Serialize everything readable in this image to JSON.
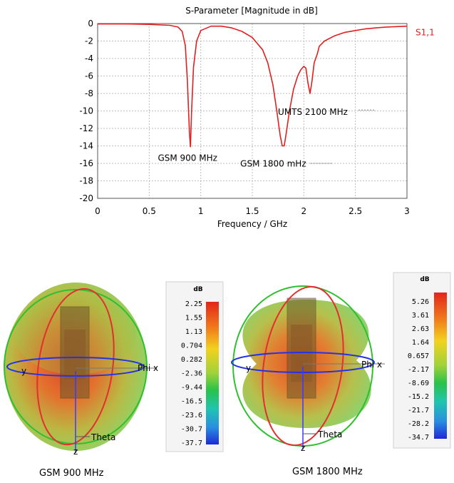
{
  "chart_data": {
    "type": "line",
    "title": "S-Parameter [Magnitude in dB]",
    "xlabel": "Frequency / GHz",
    "ylabel": "",
    "xlim": [
      0,
      3
    ],
    "ylim": [
      -20,
      0
    ],
    "x_ticks": [
      "0",
      "0.5",
      "1",
      "1.5",
      "2",
      "2.5",
      "3"
    ],
    "y_ticks": [
      "0",
      "-2",
      "-4",
      "-6",
      "-8",
      "-10",
      "-12",
      "-14",
      "-16",
      "-18",
      "-20"
    ],
    "grid": true,
    "series": [
      {
        "name": "S1,1",
        "color": "#e02020",
        "x": [
          0,
          0.3,
          0.5,
          0.7,
          0.78,
          0.82,
          0.85,
          0.87,
          0.89,
          0.9,
          0.91,
          0.93,
          0.96,
          1.0,
          1.1,
          1.2,
          1.3,
          1.4,
          1.5,
          1.6,
          1.65,
          1.7,
          1.74,
          1.77,
          1.79,
          1.81,
          1.83,
          1.86,
          1.9,
          1.94,
          1.97,
          2.0,
          2.02,
          2.04,
          2.06,
          2.08,
          2.1,
          2.13,
          2.15,
          2.2,
          2.3,
          2.4,
          2.5,
          2.6,
          2.7,
          2.8,
          2.9,
          3.0
        ],
        "y": [
          -0.05,
          -0.05,
          -0.1,
          -0.2,
          -0.4,
          -0.9,
          -2.5,
          -6.5,
          -12.5,
          -14.1,
          -10.5,
          -5.0,
          -2.0,
          -0.8,
          -0.3,
          -0.3,
          -0.5,
          -0.9,
          -1.6,
          -3.0,
          -4.5,
          -7.0,
          -10.2,
          -12.8,
          -14.0,
          -14.0,
          -12.5,
          -10.0,
          -7.5,
          -6.0,
          -5.3,
          -4.9,
          -5.1,
          -6.8,
          -8.0,
          -6.5,
          -4.5,
          -3.5,
          -2.6,
          -2.0,
          -1.4,
          -1.0,
          -0.8,
          -0.6,
          -0.5,
          -0.4,
          -0.35,
          -0.3
        ]
      }
    ],
    "annotations": [
      {
        "text": "GSM 900 MHz",
        "x": 0.9,
        "y": -14.1
      },
      {
        "text": "GSM 1800 mHz",
        "x": 1.8,
        "y": -14.0
      },
      {
        "text": "UMTS 2100 MHz",
        "x": 2.06,
        "y": -8.0
      }
    ]
  },
  "patterns": [
    {
      "caption": "GSM 900 MHz",
      "unit": "dB",
      "scale": [
        "2.25",
        "1.55",
        "1.13",
        "0.704",
        "0.282",
        "-2.36",
        "-9.44",
        "-16.5",
        "-23.6",
        "-30.7",
        "-37.7"
      ],
      "axes": {
        "x": "Phi x",
        "y": "y",
        "z": "z",
        "theta": "Theta"
      }
    },
    {
      "caption": "GSM 1800 MHz",
      "unit": "dB",
      "scale": [
        "5.26",
        "3.61",
        "2.63",
        "1.64",
        "0.657",
        "-2.17",
        "-8.69",
        "-15.2",
        "-21.7",
        "-28.2",
        "-34.7"
      ],
      "axes": {
        "x": "Phi x",
        "y": "y",
        "z": "z",
        "theta": "Theta"
      }
    }
  ]
}
